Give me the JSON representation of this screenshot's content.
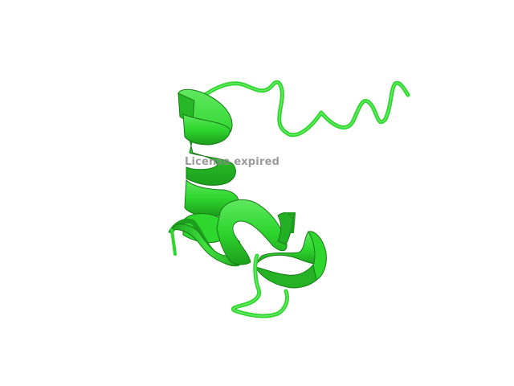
{
  "viewer": {
    "watermark_text": "License expired",
    "background_color": "#ffffff",
    "structure_color": "#2ed62e",
    "structure_dark": "#1a8f1a",
    "structure_light": "#6cf06c",
    "representation": "cartoon",
    "watermark_color": "#8a8a8a"
  }
}
